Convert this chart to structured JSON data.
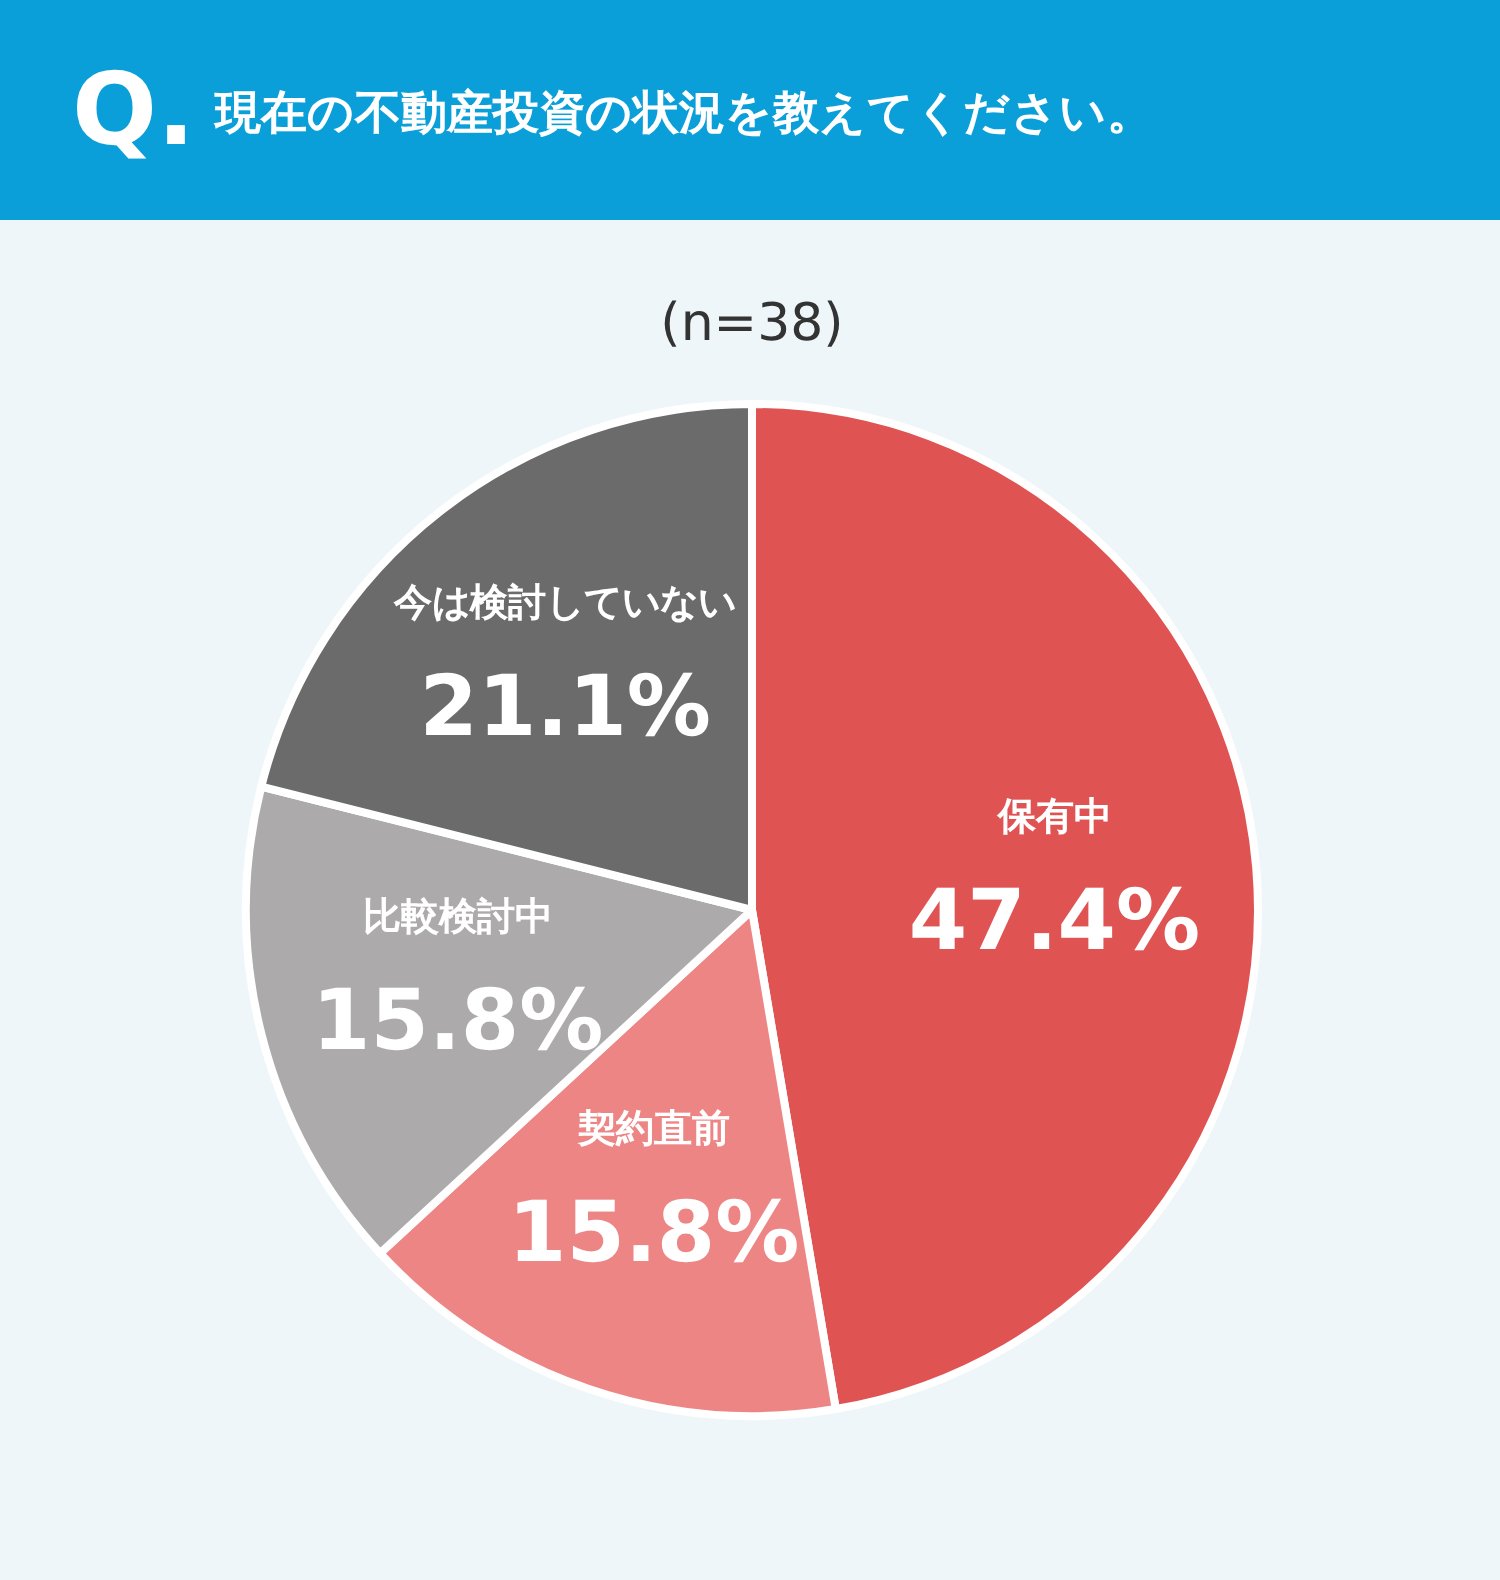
{
  "chart_data": {
    "type": "pie",
    "title": "Q. 現在の不動産投資の状況を教えてください。",
    "subtitle": "(n=38)",
    "categories": [
      "保有中",
      "契約直前",
      "比較検討中",
      "今は検討していない"
    ],
    "values": [
      47.4,
      15.8,
      15.8,
      21.1
    ],
    "value_labels": [
      "47.4%",
      "15.8%",
      "15.8%",
      "21.1%"
    ],
    "colors": [
      "#e05353",
      "#ee8585",
      "#acaaab",
      "#6b6b6b"
    ]
  }
}
